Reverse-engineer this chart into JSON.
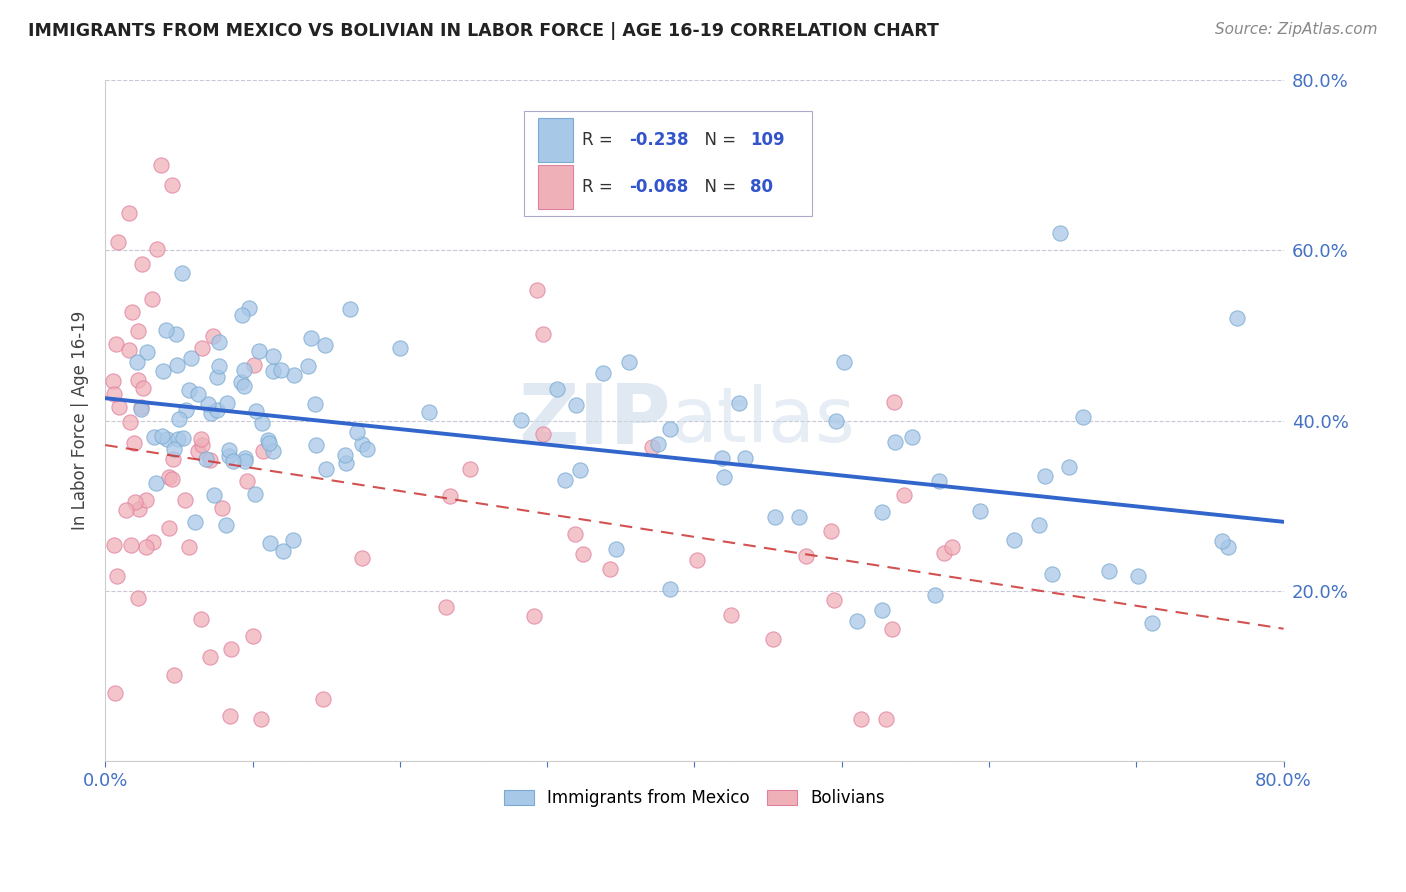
{
  "title": "IMMIGRANTS FROM MEXICO VS BOLIVIAN IN LABOR FORCE | AGE 16-19 CORRELATION CHART",
  "source": "Source: ZipAtlas.com",
  "ylabel": "In Labor Force | Age 16-19",
  "xlim": [
    0.0,
    0.8
  ],
  "ylim": [
    0.0,
    0.8
  ],
  "mexico_R": -0.238,
  "mexico_N": 109,
  "bolivia_R": -0.068,
  "bolivia_N": 80,
  "mexico_color": "#a8c8e8",
  "bolivia_color": "#f0b0b8",
  "mexico_edge_color": "#7aaad0",
  "bolivia_edge_color": "#e080a0",
  "mexico_line_color": "#3366cc",
  "bolivia_line_color": "#cc3333",
  "background_color": "#ffffff",
  "grid_color": "#c8c8d8",
  "legend_border_color": "#aaaacc"
}
